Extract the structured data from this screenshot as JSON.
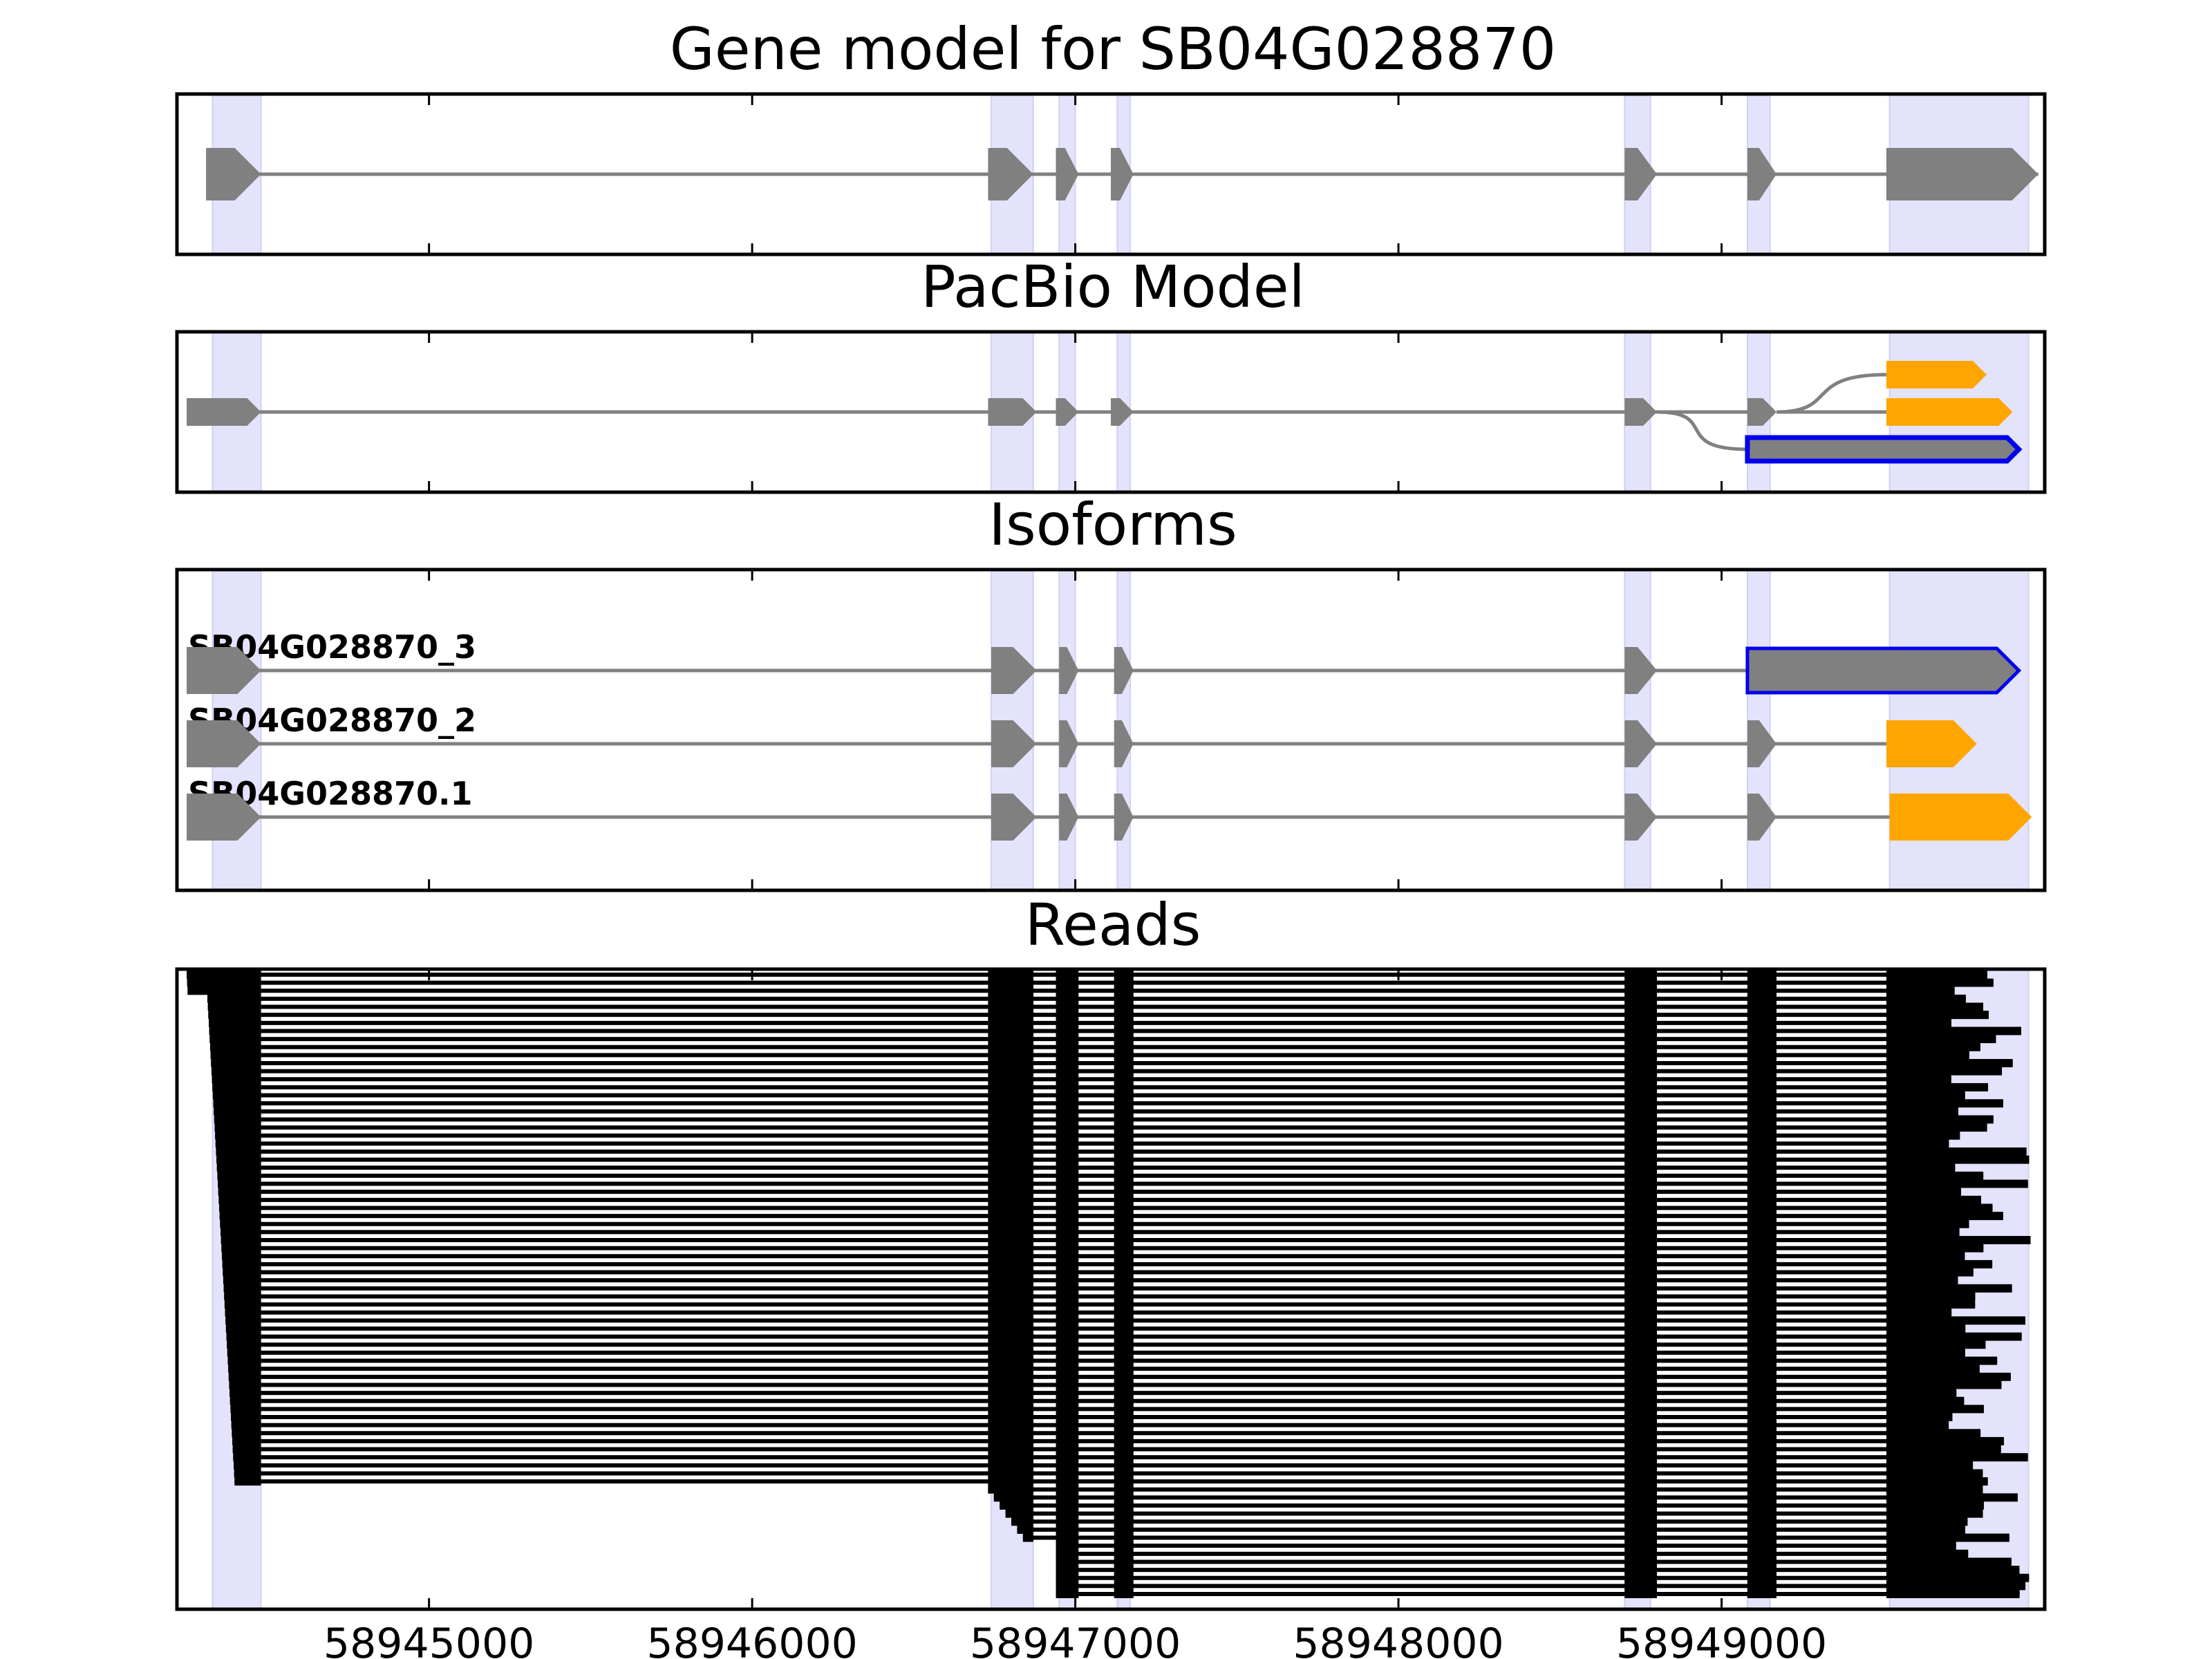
{
  "figure": {
    "titles": [
      "Gene model for SB04G028870",
      "PacBio Model",
      "Isoforms",
      "Reads"
    ],
    "x_axis": {
      "ticks": [
        58945000,
        58946000,
        58947000,
        58948000,
        58949000
      ],
      "tick_labels": [
        "58945000",
        "58946000",
        "58947000",
        "58948000",
        "58949000"
      ],
      "range": [
        58944220,
        58950000
      ]
    },
    "colors": {
      "intron": "#808080",
      "exon": "#808080",
      "utr3": "#ffa500",
      "highlight_outline": "#0000ee",
      "shade": "#e3e3fb",
      "read": "#000000"
    },
    "shaded_exons": [
      [
        58944330,
        58944480
      ],
      [
        58946740,
        58946870
      ],
      [
        58946950,
        58947000
      ],
      [
        58947130,
        58947170
      ],
      [
        58948700,
        58948780
      ],
      [
        58949080,
        58949150
      ],
      [
        58949520,
        58949950
      ]
    ],
    "gene_model": {
      "exons": [
        [
          58944310,
          58944480
        ],
        [
          58946730,
          58946870
        ],
        [
          58946940,
          58947010
        ],
        [
          58947110,
          58947180
        ],
        [
          58948700,
          58948800
        ],
        [
          58949080,
          58949170
        ],
        [
          58949510,
          58949980
        ]
      ]
    },
    "pacbio_model": {
      "shared_exons": [
        [
          58944250,
          58944480
        ],
        [
          58946730,
          58946880
        ],
        [
          58946940,
          58947010
        ],
        [
          58947110,
          58947180
        ],
        [
          58948700,
          58948800
        ]
      ],
      "branches": [
        {
          "exons": [
            [
              58949080,
              58949170
            ]
          ],
          "utr": [
            58949510,
            58949820
          ],
          "utr_color": "orange"
        },
        {
          "exons": [
            [
              58949080,
              58949170
            ]
          ],
          "utr": [
            58949510,
            58949900
          ],
          "utr_color": "orange"
        },
        {
          "exons": [],
          "utr": [
            58949080,
            58949920
          ],
          "utr_color": "outline"
        }
      ]
    },
    "isoforms": [
      {
        "name": "SB04G028870_3",
        "exons": [
          [
            58944250,
            58944480
          ],
          [
            58946740,
            58946880
          ],
          [
            58946950,
            58947010
          ],
          [
            58947120,
            58947180
          ],
          [
            58948700,
            58948800
          ]
        ],
        "utr": [
          58949080,
          58949920
        ],
        "utr_color": "outline"
      },
      {
        "name": "SB04G028870_2",
        "exons": [
          [
            58944250,
            58944480
          ],
          [
            58946740,
            58946880
          ],
          [
            58946950,
            58947010
          ],
          [
            58947120,
            58947180
          ],
          [
            58948700,
            58948800
          ],
          [
            58949080,
            58949170
          ]
        ],
        "utr": [
          58949510,
          58949790
        ],
        "utr_color": "orange"
      },
      {
        "name": "SB04G028870.1",
        "exons": [
          [
            58944250,
            58944480
          ],
          [
            58946740,
            58946880
          ],
          [
            58946950,
            58947010
          ],
          [
            58947120,
            58947180
          ],
          [
            58948700,
            58948800
          ],
          [
            58949080,
            58949170
          ]
        ],
        "utr": [
          58949520,
          58949960
        ],
        "utr_color": "orange"
      }
    ],
    "reads": {
      "count": 78,
      "exon_blocks": [
        [
          58944310,
          58944480
        ],
        [
          58946730,
          58946870
        ],
        [
          58946940,
          58947010
        ],
        [
          58947120,
          58947180
        ],
        [
          58948700,
          58948800
        ],
        [
          58949080,
          58949170
        ],
        [
          58949510,
          58949940
        ]
      ]
    }
  }
}
